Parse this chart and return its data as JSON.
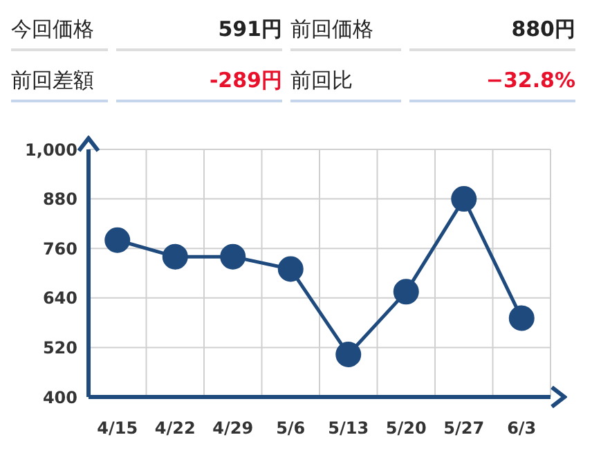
{
  "chart_data": {
    "type": "line",
    "annotations": [
      "今回価格",
      "591円",
      "前回価格",
      "880円",
      "前回差額",
      "-289円",
      "前回比",
      "−32.8%"
    ],
    "categories": [
      "4/15",
      "4/22",
      "4/29",
      "5/6",
      "5/13",
      "5/20",
      "5/27",
      "6/3"
    ],
    "series": [
      {
        "color": "#1f4a7e",
        "values": [
          780,
          740,
          740,
          710,
          503,
          655,
          880,
          591
        ]
      }
    ],
    "ylim": [
      400,
      1000
    ],
    "yticks": [
      400,
      520,
      640,
      760,
      880,
      {
        "value": 1000,
        "label": "1,000"
      }
    ],
    "grid": true,
    "marker": "circle",
    "line_style": "solid"
  }
}
